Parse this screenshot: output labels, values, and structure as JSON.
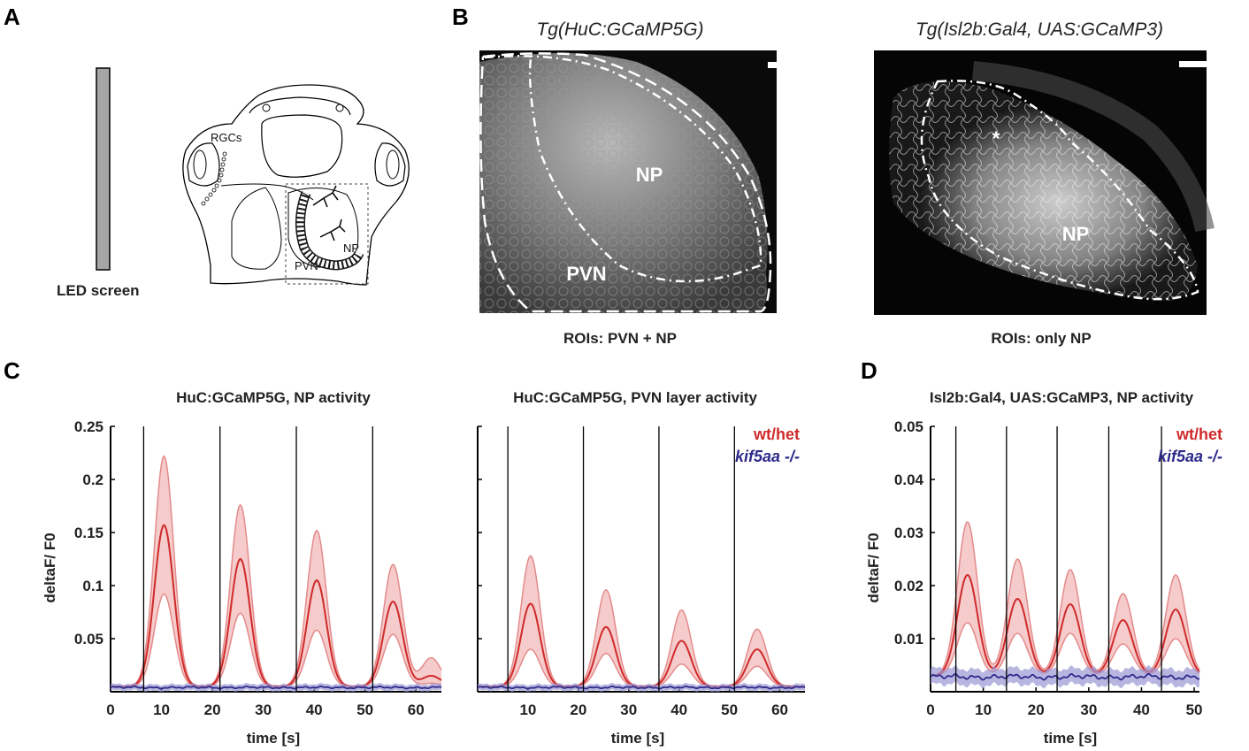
{
  "panels": {
    "A": "A",
    "B": "B",
    "C": "C",
    "D": "D"
  },
  "sketch": {
    "screen_label": "LED screen",
    "rgc_label": "RGCs",
    "np_label": "NP",
    "pvn_label": "PVN"
  },
  "micrographs": {
    "left": {
      "title": "Tg(HuC:GCaMP5G)",
      "caption": "ROIs: PVN + NP",
      "labels": {
        "np": "NP",
        "pvn": "PVN"
      }
    },
    "right": {
      "title": "Tg(Isl2b:Gal4, UAS:GCaMP3)",
      "caption": "ROIs: only NP",
      "labels": {
        "np": "NP",
        "asterisk": "*"
      }
    }
  },
  "colors": {
    "wt": "#d02a2a",
    "wt_band": "#f2b9b9",
    "kif": "#2e2a8a",
    "kif_band": "#9a97d4",
    "axis": "#000000"
  },
  "chart_data": [
    {
      "type": "line",
      "title": "HuC:GCaMP5G, NP activity",
      "xlabel": "time [s]",
      "ylabel": "deltaF/ F0",
      "xlim": [
        0,
        65
      ],
      "ylim": [
        0,
        0.25
      ],
      "xticks": [
        0,
        10,
        20,
        30,
        40,
        50,
        60
      ],
      "xtick_labels": [
        "0",
        "10",
        "20",
        "30",
        "40",
        "50",
        "60"
      ],
      "yticks": [
        0.05,
        0.1,
        0.15,
        0.2,
        0.25
      ],
      "ytick_labels": [
        "0.05",
        "0.1",
        "0.15",
        "0.2",
        "0.25"
      ],
      "stimulus_onsets": [
        6.5,
        21.5,
        36.5,
        51.5
      ],
      "series": [
        {
          "name": "wt/het",
          "baseline": 0.005,
          "peaks": [
            {
              "t": 10.5,
              "mean": 0.157,
              "upper": 0.222,
              "lower": 0.092
            },
            {
              "t": 25.5,
              "mean": 0.125,
              "upper": 0.176,
              "lower": 0.074
            },
            {
              "t": 40.5,
              "mean": 0.105,
              "upper": 0.152,
              "lower": 0.058
            },
            {
              "t": 55.5,
              "mean": 0.085,
              "upper": 0.12,
              "lower": 0.054
            },
            {
              "t": 63.0,
              "mean": 0.015,
              "upper": 0.032,
              "lower": 0.008
            }
          ]
        },
        {
          "name": "kif5aa -/-",
          "baseline": 0.004,
          "band": 0.003
        }
      ]
    },
    {
      "type": "line",
      "title": "HuC:GCaMP5G, PVN layer activity",
      "xlabel": "time [s]",
      "ylabel": "",
      "xlim": [
        0,
        65
      ],
      "ylim": [
        0,
        0.25
      ],
      "xticks": [
        10,
        20,
        30,
        40,
        50,
        60
      ],
      "xtick_labels": [
        "10",
        "20",
        "30",
        "40",
        "50",
        "60"
      ],
      "yticks": [
        0.05,
        0.1,
        0.15,
        0.2,
        0.25
      ],
      "ytick_labels": [],
      "stimulus_onsets": [
        6.0,
        21.0,
        36.0,
        51.0
      ],
      "legend": {
        "entries": [
          "wt/het",
          "kif5aa -/-"
        ],
        "placement": "top-right"
      },
      "series": [
        {
          "name": "wt/het",
          "baseline": 0.005,
          "peaks": [
            {
              "t": 10.5,
              "mean": 0.083,
              "upper": 0.128,
              "lower": 0.04
            },
            {
              "t": 25.5,
              "mean": 0.061,
              "upper": 0.096,
              "lower": 0.036
            },
            {
              "t": 40.5,
              "mean": 0.048,
              "upper": 0.077,
              "lower": 0.026
            },
            {
              "t": 55.5,
              "mean": 0.04,
              "upper": 0.059,
              "lower": 0.024
            }
          ]
        },
        {
          "name": "kif5aa -/-",
          "baseline": 0.004,
          "band": 0.003
        }
      ]
    },
    {
      "type": "line",
      "title": "Isl2b:Gal4, UAS:GCaMP3, NP activity",
      "xlabel": "time [s]",
      "ylabel": "deltaF/ F0",
      "xlim": [
        0,
        51
      ],
      "ylim": [
        0,
        0.05
      ],
      "xticks": [
        0,
        10,
        20,
        30,
        40,
        50
      ],
      "xtick_labels": [
        "0",
        "10",
        "20",
        "30",
        "40",
        "50"
      ],
      "yticks": [
        0.01,
        0.02,
        0.03,
        0.04,
        0.05
      ],
      "ytick_labels": [
        "0.01",
        "0.02",
        "0.03",
        "0.04",
        "0.05"
      ],
      "stimulus_onsets": [
        4.8,
        14.4,
        24.0,
        33.8,
        43.8
      ],
      "legend": {
        "entries": [
          "wt/het",
          "kif5aa -/-"
        ],
        "placement": "top-right"
      },
      "series": [
        {
          "name": "wt/het",
          "baseline": 0.003,
          "peaks": [
            {
              "t": 7.0,
              "mean": 0.022,
              "upper": 0.032,
              "lower": 0.013
            },
            {
              "t": 16.5,
              "mean": 0.0175,
              "upper": 0.025,
              "lower": 0.011
            },
            {
              "t": 26.5,
              "mean": 0.0165,
              "upper": 0.023,
              "lower": 0.011
            },
            {
              "t": 36.5,
              "mean": 0.0135,
              "upper": 0.0185,
              "lower": 0.009
            },
            {
              "t": 46.5,
              "mean": 0.0155,
              "upper": 0.022,
              "lower": 0.01
            }
          ]
        },
        {
          "name": "kif5aa -/-",
          "baseline": 0.0028,
          "band": 0.0015
        }
      ]
    }
  ]
}
